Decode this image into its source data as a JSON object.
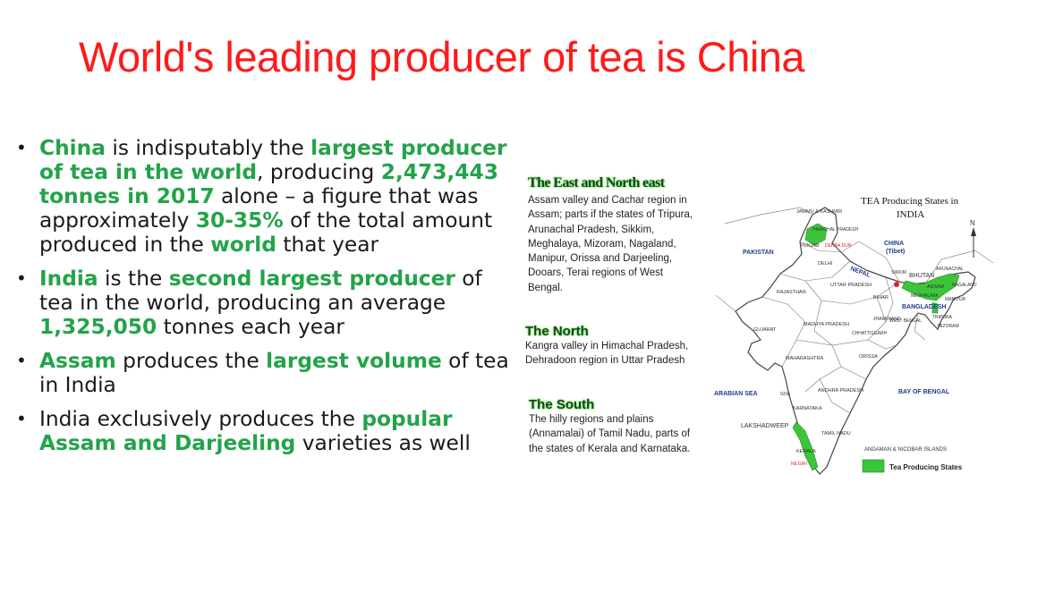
{
  "slide": {
    "title": "World's leading producer of tea is China",
    "bullets": [
      {
        "segments": [
          {
            "text": "China",
            "hl": true
          },
          {
            "text": " is indisputably the ",
            "hl": false
          },
          {
            "text": "largest producer of tea in the world",
            "hl": true
          },
          {
            "text": ", producing ",
            "hl": false
          },
          {
            "text": "2,473,443 tonnes in 2017",
            "hl": true
          },
          {
            "text": " alone – a figure that was approximately ",
            "hl": false
          },
          {
            "text": "30-35%",
            "hl": true
          },
          {
            "text": " of the total amount produced in the ",
            "hl": false
          },
          {
            "text": "world",
            "hl": true
          },
          {
            "text": " that year",
            "hl": false
          }
        ]
      },
      {
        "segments": [
          {
            "text": "India",
            "hl": true
          },
          {
            "text": " is the ",
            "hl": false
          },
          {
            "text": "second largest producer",
            "hl": true
          },
          {
            "text": " of tea in the world, producing an average ",
            "hl": false
          },
          {
            "text": "1,325,050",
            "hl": true
          },
          {
            "text": " tonnes each year",
            "hl": false
          }
        ]
      },
      {
        "segments": [
          {
            "text": "Assam",
            "hl": true
          },
          {
            "text": " produces the ",
            "hl": false
          },
          {
            "text": "largest volume",
            "hl": true
          },
          {
            "text": " of tea in India",
            "hl": false
          }
        ]
      },
      {
        "segments": [
          {
            "text": "India exclusively produces the ",
            "hl": false
          },
          {
            "text": "popular Assam and Darjeeling",
            "hl": true
          },
          {
            "text": " varieties as well",
            "hl": false
          }
        ]
      }
    ]
  },
  "map": {
    "title_line1": "TEA Producing States in",
    "title_line2": "INDIA",
    "sections": [
      {
        "heading": "The East and North east",
        "text": "Assam valley and Cachar region in Assam; parts if the states of Tripura, Arunachal Pradesh, Sikkim, Meghalaya, Mizoram, Nagaland, Manipur, Orissa and Darjeeling, Dooars, Terai regions of West Bengal."
      },
      {
        "heading": "The North",
        "text": "Kangra valley in Himachal Pradesh, Dehradoon region in Uttar Pradesh"
      },
      {
        "heading": "The South",
        "text": "The hilly regions and plains (Annamalai) of Tamil Nadu, parts of the states of Kerala and Karnataka."
      }
    ],
    "labels": {
      "pakistan": "PAKISTAN",
      "china": "CHINA",
      "tibet": "(Tibet)",
      "nepal": "NEPAL",
      "bhutan": "BHUTAN",
      "bangladesh": "BANGLADESH",
      "arabian_sea": "ARABIAN SEA",
      "bay_of_bengal": "BAY OF BENGAL",
      "lakshadweep": "LAKSHADWEEP",
      "andaman": "ANDAMAN & NICOBAR ISLANDS",
      "jammu": "JAMMU & KASHMIR",
      "himachal": "HIMACHAL PRADESH",
      "punjab": "PUNJAB",
      "delhi": "DELHI",
      "uttar": "UTTAR PRADESH",
      "rajasthan": "RAJASTHAN",
      "gujarat": "GUJARAT",
      "madhya": "MADHYA PRADESH",
      "maharashtra": "MAHARASHTRA",
      "bihar": "BIHAR",
      "orissa": "ORISSA",
      "andhra": "ANDHRA PRADESH",
      "karnataka": "KARNATAKA",
      "goa": "GOA",
      "kerala": "KERALA",
      "tamil": "TAMIL NADU",
      "assam": "ASSAM",
      "nagaland": "NAGALAND",
      "manipur": "MANIPUR",
      "tripura": "TRIPURA",
      "mizoram": "MIZORAM",
      "meghalaya": "MEGHALAYA",
      "sikkim": "SIKKIM",
      "nilgiri": "NILGIRI",
      "dehradun": "DEHRA DUN",
      "chhattisgarh": "CHHATTISGARH",
      "jharkhand": "JHARKHAND",
      "wbengal": "WEST BENGAL",
      "arunachal": "ARUNACHAL",
      "north": "N"
    },
    "legend": "Tea Producing States",
    "colors": {
      "tea": "#3cc43a",
      "border": "#444444",
      "accent": "#d8202b"
    }
  }
}
